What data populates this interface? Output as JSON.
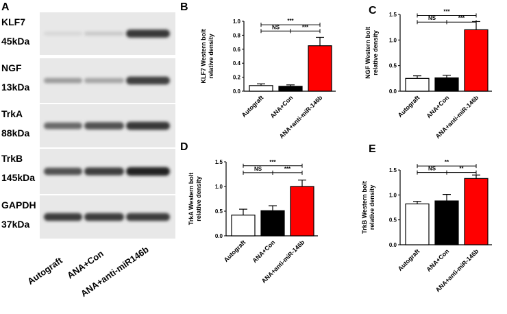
{
  "blot_panel": {
    "letter": "A",
    "rows": [
      {
        "protein": "KLF7",
        "size": "45kDa",
        "intensity": [
          0.05,
          0.12,
          0.85
        ]
      },
      {
        "protein": "NGF",
        "size": "13kDa",
        "intensity": [
          0.35,
          0.3,
          0.8
        ]
      },
      {
        "protein": "TrkA",
        "size": "88kDa",
        "intensity": [
          0.6,
          0.72,
          0.85
        ]
      },
      {
        "protein": "TrkB",
        "size": "145kDa",
        "intensity": [
          0.72,
          0.82,
          0.95
        ]
      },
      {
        "protein": "GAPDH",
        "size": "37kDa",
        "intensity": [
          0.82,
          0.82,
          0.82
        ]
      }
    ],
    "lanes": [
      "Autograft",
      "ANA+Con",
      "ANA+anti-miR146b"
    ]
  },
  "chart_data": [
    {
      "panel": "B",
      "type": "bar",
      "ylabel_line1": "KLF7  Western bolt",
      "ylabel_line2": "relative density",
      "categories": [
        "Autograft",
        "ANA+Con",
        "ANA+anti-miR-146b"
      ],
      "values": [
        0.08,
        0.07,
        0.65
      ],
      "errors": [
        0.025,
        0.02,
        0.12
      ],
      "ylim": [
        0,
        1.0
      ],
      "yticks": [
        "0.0",
        "0.2",
        "0.4",
        "0.6",
        "0.8",
        "1.0"
      ],
      "ytick_values": [
        0,
        0.2,
        0.4,
        0.6,
        0.8,
        1.0
      ],
      "bar_colors": [
        "#ffffff",
        "#000000",
        "#ff0000"
      ],
      "significance": [
        {
          "from": 0,
          "to": 2,
          "label": "***",
          "level": 0.95
        },
        {
          "from": 0,
          "to": 1,
          "label": "NS",
          "level": 0.86
        },
        {
          "from": 1,
          "to": 2,
          "label": "***",
          "level": 0.86
        }
      ]
    },
    {
      "panel": "C",
      "type": "bar",
      "ylabel_line1": "NGF  Western bolt",
      "ylabel_line2": "relative density",
      "categories": [
        "Autograft",
        "ANA+Con",
        "ANA+anti-miR-146b"
      ],
      "values": [
        0.25,
        0.26,
        1.2
      ],
      "errors": [
        0.05,
        0.05,
        0.16
      ],
      "ylim": [
        0,
        1.5
      ],
      "yticks": [
        "0.0",
        "0.5",
        "1.0",
        "1.5"
      ],
      "ytick_values": [
        0,
        0.5,
        1.0,
        1.5
      ],
      "bar_colors": [
        "#ffffff",
        "#000000",
        "#ff0000"
      ],
      "significance": [
        {
          "from": 0,
          "to": 2,
          "label": "***",
          "level": 1.48
        },
        {
          "from": 0,
          "to": 1,
          "label": "NS",
          "level": 1.35
        },
        {
          "from": 1,
          "to": 2,
          "label": "***",
          "level": 1.35
        }
      ]
    },
    {
      "panel": "D",
      "type": "bar",
      "ylabel_line1": "TrkA Western bolt",
      "ylabel_line2": "relative density",
      "categories": [
        "Autograft",
        "ANA+Con",
        "ANA+anti-miR-146b"
      ],
      "values": [
        0.42,
        0.51,
        1.0
      ],
      "errors": [
        0.12,
        0.1,
        0.13
      ],
      "ylim": [
        0,
        1.5
      ],
      "yticks": [
        "0.0",
        "0.5",
        "1.0",
        "1.5"
      ],
      "ytick_values": [
        0,
        0.5,
        1.0,
        1.5
      ],
      "bar_colors": [
        "#ffffff",
        "#000000",
        "#ff0000"
      ],
      "significance": [
        {
          "from": 0,
          "to": 2,
          "label": "***",
          "level": 1.42
        },
        {
          "from": 0,
          "to": 1,
          "label": "NS",
          "level": 1.28
        },
        {
          "from": 1,
          "to": 2,
          "label": "***",
          "level": 1.28
        }
      ]
    },
    {
      "panel": "E",
      "type": "bar",
      "ylabel_line1": "TrkB Western bolt",
      "ylabel_line2": "relative density",
      "categories": [
        "Autograft",
        "ANA+Con",
        "ANA+anti-miR-146b"
      ],
      "values": [
        0.82,
        0.88,
        1.33
      ],
      "errors": [
        0.05,
        0.13,
        0.07
      ],
      "ylim": [
        0,
        1.5
      ],
      "yticks": [
        "0.0",
        "0.5",
        "1.0",
        "1.5"
      ],
      "ytick_values": [
        0,
        0.5,
        1.0,
        1.5
      ],
      "bar_colors": [
        "#ffffff",
        "#000000",
        "#ff0000"
      ],
      "significance": [
        {
          "from": 0,
          "to": 2,
          "label": "**",
          "level": 1.58
        },
        {
          "from": 0,
          "to": 1,
          "label": "NS",
          "level": 1.45
        },
        {
          "from": 1,
          "to": 2,
          "label": "**",
          "level": 1.45
        }
      ]
    }
  ]
}
